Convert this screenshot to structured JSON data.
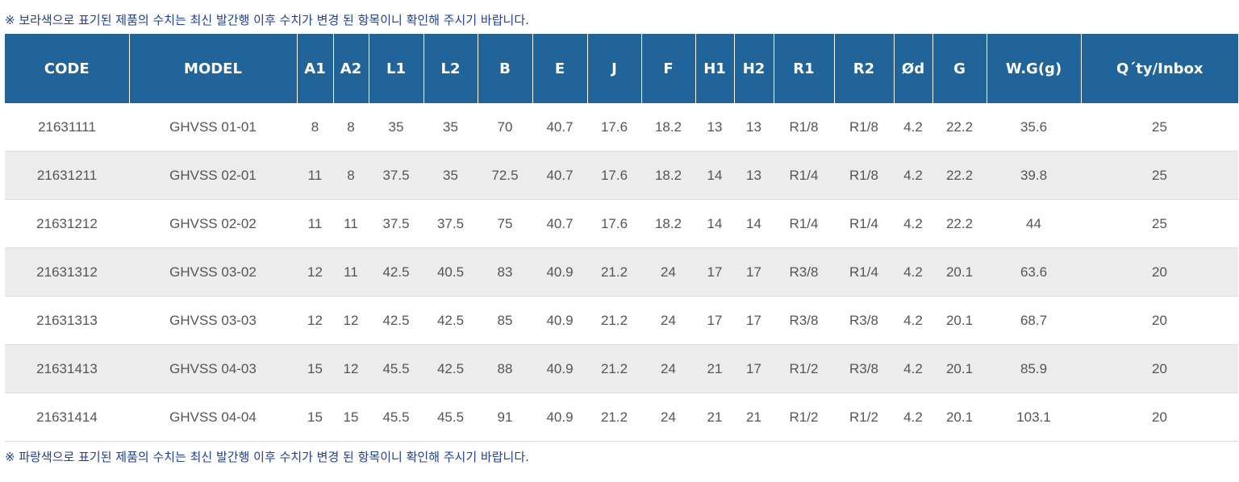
{
  "notes": {
    "top": "※ 보라색으로 표기된 제품의 수치는 최신 발간행 이후 수치가 변경 된 항목이니 확인해 주시기 바랍니다.",
    "bottom": "※ 파랑색으로 표기된 제품의 수치는 최신 발간행 이후 수치가 변경 된 항목이니 확인해 주시기 바랍니다."
  },
  "colors": {
    "header_bg": "#21649a",
    "note_text": "#1f3f8f",
    "stripe": "#ececec"
  },
  "table": {
    "headers": [
      "CODE",
      "MODEL",
      "A1",
      "A2",
      "L1",
      "L2",
      "B",
      "E",
      "J",
      "F",
      "H1",
      "H2",
      "R1",
      "R2",
      "Ød",
      "G",
      "W.G(g)",
      "Q´ty/Inbox"
    ],
    "rows": [
      [
        "21631111",
        "GHVSS 01-01",
        "8",
        "8",
        "35",
        "35",
        "70",
        "40.7",
        "17.6",
        "18.2",
        "13",
        "13",
        "R1/8",
        "R1/8",
        "4.2",
        "22.2",
        "35.6",
        "25"
      ],
      [
        "21631211",
        "GHVSS 02-01",
        "11",
        "8",
        "37.5",
        "35",
        "72.5",
        "40.7",
        "17.6",
        "18.2",
        "14",
        "13",
        "R1/4",
        "R1/8",
        "4.2",
        "22.2",
        "39.8",
        "25"
      ],
      [
        "21631212",
        "GHVSS 02-02",
        "11",
        "11",
        "37.5",
        "37.5",
        "75",
        "40.7",
        "17.6",
        "18.2",
        "14",
        "14",
        "R1/4",
        "R1/4",
        "4.2",
        "22.2",
        "44",
        "25"
      ],
      [
        "21631312",
        "GHVSS 03-02",
        "12",
        "11",
        "42.5",
        "40.5",
        "83",
        "40.9",
        "21.2",
        "24",
        "17",
        "17",
        "R3/8",
        "R1/4",
        "4.2",
        "20.1",
        "63.6",
        "20"
      ],
      [
        "21631313",
        "GHVSS 03-03",
        "12",
        "12",
        "42.5",
        "42.5",
        "85",
        "40.9",
        "21.2",
        "24",
        "17",
        "17",
        "R3/8",
        "R3/8",
        "4.2",
        "20.1",
        "68.7",
        "20"
      ],
      [
        "21631413",
        "GHVSS 04-03",
        "15",
        "12",
        "45.5",
        "42.5",
        "88",
        "40.9",
        "21.2",
        "24",
        "21",
        "17",
        "R1/2",
        "R3/8",
        "4.2",
        "20.1",
        "85.9",
        "20"
      ],
      [
        "21631414",
        "GHVSS 04-04",
        "15",
        "15",
        "45.5",
        "45.5",
        "91",
        "40.9",
        "21.2",
        "24",
        "21",
        "21",
        "R1/2",
        "R1/2",
        "4.2",
        "20.1",
        "103.1",
        "20"
      ]
    ]
  }
}
